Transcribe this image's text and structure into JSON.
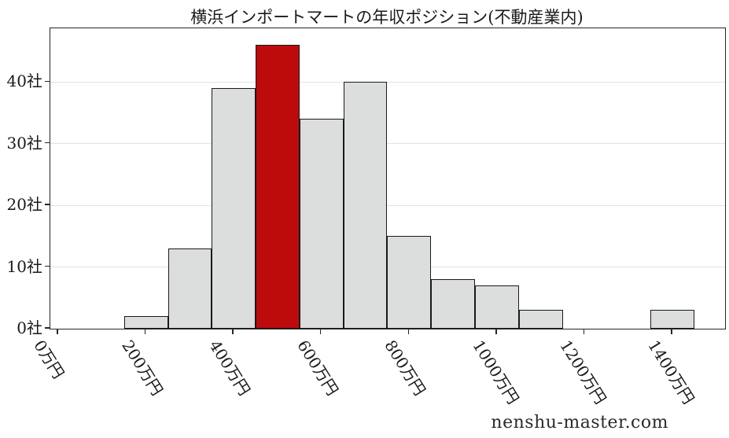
{
  "title": "横浜インポートマートの年収ポジション(不動産業内)",
  "watermark": "nenshu-master.com",
  "colors": {
    "bar_fill": "#dcdddd",
    "bar_highlight": "#bd0b0b",
    "bar_edge": "#1a1a1a",
    "gridline": "#e2e2e2",
    "spine": "#262626",
    "text": "#1a1a1a"
  },
  "chart_data": {
    "type": "bar",
    "subtype": "histogram",
    "title": "横浜インポートマートの年収ポジション(不動産業内)",
    "xlabel": "",
    "ylabel": "",
    "bin_centers": [
      200,
      300,
      400,
      500,
      600,
      700,
      800,
      900,
      1000,
      1100,
      1200,
      1300,
      1400
    ],
    "bin_width": 100,
    "values": [
      2,
      13,
      39,
      46,
      34,
      40,
      15,
      8,
      7,
      3,
      0,
      0,
      3
    ],
    "highlight_center": 500,
    "highlight_value": 46,
    "x_ticks": [
      {
        "value": 0,
        "label": "0万円"
      },
      {
        "value": 200,
        "label": "200万円"
      },
      {
        "value": 400,
        "label": "400万円"
      },
      {
        "value": 600,
        "label": "600万円"
      },
      {
        "value": 800,
        "label": "800万円"
      },
      {
        "value": 1000,
        "label": "1000万円"
      },
      {
        "value": 1200,
        "label": "1200万円"
      },
      {
        "value": 1400,
        "label": "1400万円"
      }
    ],
    "y_ticks": [
      {
        "value": 0,
        "label": "0社"
      },
      {
        "value": 10,
        "label": "10社"
      },
      {
        "value": 20,
        "label": "20社"
      },
      {
        "value": 30,
        "label": "30社"
      },
      {
        "value": 40,
        "label": "40社"
      }
    ],
    "xlim": [
      -18,
      1520
    ],
    "ylim": [
      0,
      48.7
    ],
    "grid": "horizontal",
    "legend": "none"
  }
}
